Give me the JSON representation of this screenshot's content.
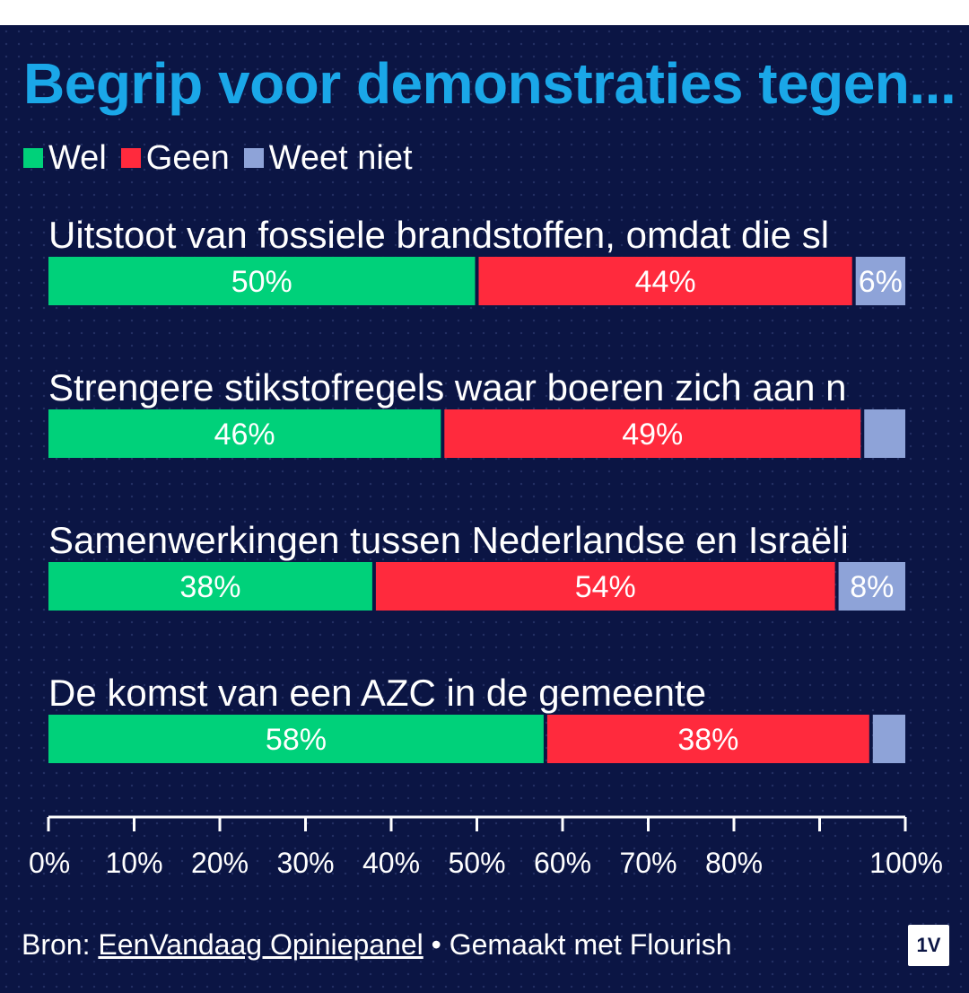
{
  "header": {
    "title": "Begrip voor demonstraties tegen..."
  },
  "footer": {
    "source_prefix": "Bron: ",
    "source_link": "EenVandaag Opiniepanel",
    "made_with": " • Gemaakt met Flourish"
  },
  "logo": {
    "text": "1V"
  },
  "colors": {
    "wel": "#00d17a",
    "geen": "#ff2a3d",
    "weet_niet": "#8ea3d8",
    "background": "#0b1544",
    "title": "#1aa7e8"
  },
  "chart_data": {
    "type": "bar",
    "orientation": "horizontal-stacked-100",
    "title": "Begrip voor demonstraties tegen...",
    "legend": [
      "Wel",
      "Geen",
      "Weet niet"
    ],
    "legend_position": "top-left",
    "categories": [
      "Uitstoot van fossiele brandstoffen, omdat die sl",
      "Strengere stikstofregels waar boeren zich aan n",
      "Samenwerkingen tussen Nederlandse en Israëli",
      "De komst van een AZC in de gemeente"
    ],
    "series": [
      {
        "name": "Wel",
        "values": [
          50,
          46,
          38,
          58
        ],
        "labels": [
          "50%",
          "46%",
          "38%",
          "58%"
        ]
      },
      {
        "name": "Geen",
        "values": [
          44,
          49,
          54,
          38
        ],
        "labels": [
          "44%",
          "49%",
          "54%",
          "38%"
        ]
      },
      {
        "name": "Weet niet",
        "values": [
          6,
          5,
          8,
          4
        ],
        "labels": [
          "6%",
          "",
          "8%",
          ""
        ]
      }
    ],
    "xlim": [
      0,
      100
    ],
    "x_ticks": [
      0,
      10,
      20,
      30,
      40,
      50,
      60,
      70,
      80,
      90,
      100
    ],
    "x_tick_labels": [
      "0%",
      "10%",
      "20%",
      "30%",
      "40%",
      "50%",
      "60%",
      "70%",
      "80%",
      "",
      "100%"
    ],
    "grid": false
  }
}
